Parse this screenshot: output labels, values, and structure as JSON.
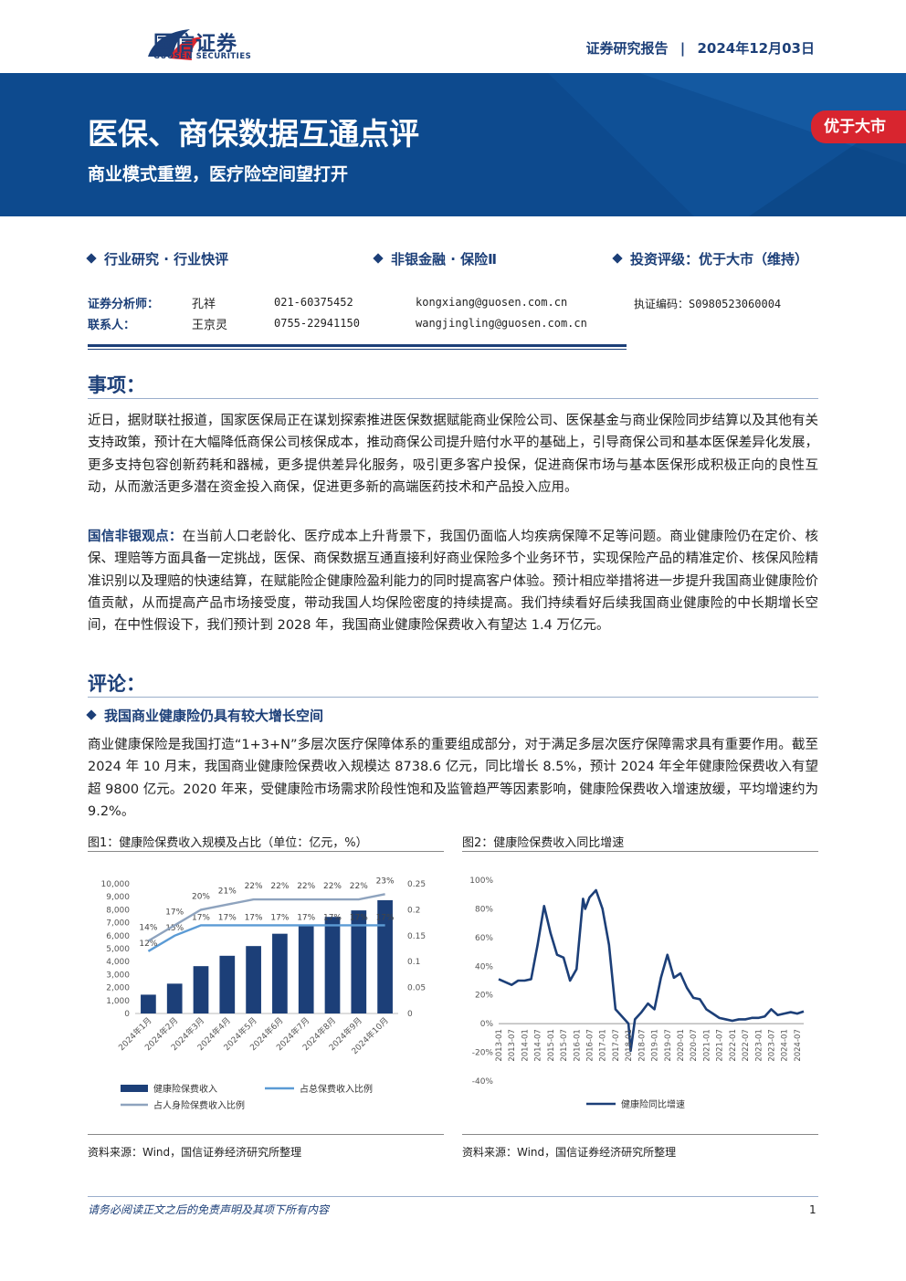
{
  "header": {
    "logo_cn": "国信证券",
    "logo_en": "GUOSEN SECURITIES",
    "report_type": "证券研究报告",
    "date": "2024年12月03日",
    "title": "医保、商保数据互通点评",
    "subtitle": "商业模式重塑，医疗险空间望打开",
    "rating_badge": "优于大市"
  },
  "info": {
    "category": "行业研究 · 行业快评",
    "industry": "非银金融 · 保险Ⅱ",
    "rating": "投资评级：优于大市（维持）"
  },
  "analysts": [
    {
      "role": "证券分析师：",
      "name": "孔祥",
      "phone": "021-60375452",
      "email": "kongxiang@guosen.com.cn",
      "cert": "执证编码：S0980523060004"
    },
    {
      "role": "联系人：",
      "name": "王京灵",
      "phone": "0755-22941150",
      "email": "wangjingling@guosen.com.cn",
      "cert": ""
    }
  ],
  "sections": {
    "event_heading": "事项：",
    "event_text": "近日，据财联社报道，国家医保局正在谋划探索推进医保数据赋能商业保险公司、医保基金与商业保险同步结算以及其他有关支持政策，预计在大幅降低商保公司核保成本，推动商保公司提升赔付水平的基础上，引导商保公司和基本医保差异化发展，更多支持包容创新药耗和器械，更多提供差异化服务，吸引更多客户投保，促进商保市场与基本医保形成积极正向的良性互动，从而激活更多潜在资金投入商保，促进更多新的高端医药技术和产品投入应用。",
    "view_label": "国信非银观点：",
    "view_text": "在当前人口老龄化、医疗成本上升背景下，我国仍面临人均疾病保障不足等问题。商业健康险仍在定价、核保、理赔等方面具备一定挑战，医保、商保数据互通直接利好商业保险多个业务环节，实现保险产品的精准定价、核保风险精准识别以及理赔的快速结算，在赋能险企健康险盈利能力的同时提高客户体验。预计相应举措将进一步提升我国商业健康险价值贡献，从而提高产品市场接受度，带动我国人均保险密度的持续提高。我们持续看好后续我国商业健康险的中长期增长空间，在中性假设下，我们预计到 2028 年，我国商业健康险保费收入有望达 1.4 万亿元。",
    "comment_heading": "评论：",
    "sub_heading": "我国商业健康险仍具有较大增长空间",
    "comment_text": "商业健康保险是我国打造“1+3+N”多层次医疗保障体系的重要组成部分，对于满足多层次医疗保障需求具有重要作用。截至 2024 年 10 月末，我国商业健康险保费收入规模达 8738.6 亿元，同比增长 8.5%，预计 2024 年全年健康险保费收入有望超 9800 亿元。2020 年来，受健康险市场需求阶段性饱和及监管趋严等因素影响，健康险保费收入增速放缓，平均增速约为 9.2%。"
  },
  "figures": {
    "fig1_title": "图1：健康险保费收入规模及占比（单位：亿元，%）",
    "fig2_title": "图2：健康险保费收入同比增速",
    "fig1_source": "资料来源：Wind，国信证券经济研究所整理",
    "fig2_source": "资料来源：Wind，国信证券经济研究所整理"
  },
  "chart_data": [
    {
      "type": "bar",
      "categories": [
        "2024年1月",
        "2024年2月",
        "2024年3月",
        "2024年4月",
        "2024年5月",
        "2024年6月",
        "2024年7月",
        "2024年8月",
        "2024年9月",
        "2024年10月"
      ],
      "series": [
        {
          "name": "健康险保费收入",
          "type": "bar",
          "axis": "left",
          "values": [
            1450,
            2300,
            3650,
            4450,
            5200,
            6150,
            6800,
            7450,
            7950,
            8738.6
          ]
        },
        {
          "name": "占总保费收入比例",
          "type": "line",
          "axis": "right",
          "values": [
            0.12,
            0.15,
            0.17,
            0.17,
            0.17,
            0.17,
            0.17,
            0.17,
            0.17,
            0.17
          ],
          "labels": [
            "12%",
            "15%",
            "17%",
            "17%",
            "17%",
            "17%",
            "17%",
            "17%",
            "17%",
            "17%"
          ]
        },
        {
          "name": "占人身险保费收入比例",
          "type": "line",
          "axis": "right",
          "values": [
            0.14,
            0.17,
            0.2,
            0.21,
            0.22,
            0.22,
            0.22,
            0.22,
            0.22,
            0.23
          ],
          "labels": [
            "14%",
            "17%",
            "20%",
            "21%",
            "22%",
            "22%",
            "22%",
            "22%",
            "22%",
            "23%"
          ]
        }
      ],
      "yticks_left": [
        "0",
        "1,000",
        "2,000",
        "3,000",
        "4,000",
        "5,000",
        "6,000",
        "7,000",
        "8,000",
        "9,000",
        "10,000"
      ],
      "yticks_right": [
        "0",
        "0.05",
        "0.1",
        "0.15",
        "0.2",
        "0.25"
      ],
      "ylim_left": [
        0,
        10000
      ],
      "ylim_right": [
        0,
        0.25
      ],
      "colors": {
        "bar": "#1c3f78",
        "line1": "#5b9bd5",
        "line2": "#8ea3be"
      },
      "legend_placement": "bottom"
    },
    {
      "type": "line",
      "series": [
        {
          "name": "健康险同比增速",
          "points": [
            [
              "2013-01",
              0.31
            ],
            [
              "2013-04",
              0.29
            ],
            [
              "2013-07",
              0.27
            ],
            [
              "2013-10",
              0.3
            ],
            [
              "2014-01",
              0.3
            ],
            [
              "2014-04",
              0.31
            ],
            [
              "2014-07",
              0.55
            ],
            [
              "2014-10",
              0.82
            ],
            [
              "2015-01",
              0.63
            ],
            [
              "2015-04",
              0.48
            ],
            [
              "2015-07",
              0.46
            ],
            [
              "2015-10",
              0.3
            ],
            [
              "2016-01",
              0.38
            ],
            [
              "2016-04",
              0.87
            ],
            [
              "2016-05",
              0.8
            ],
            [
              "2016-07",
              0.88
            ],
            [
              "2016-10",
              0.93
            ],
            [
              "2017-01",
              0.8
            ],
            [
              "2017-04",
              0.55
            ],
            [
              "2017-07",
              0.1
            ],
            [
              "2017-10",
              0.05
            ],
            [
              "2018-01",
              0.0
            ],
            [
              "2018-02",
              -0.19
            ],
            [
              "2018-04",
              0.03
            ],
            [
              "2018-07",
              0.08
            ],
            [
              "2018-10",
              0.14
            ],
            [
              "2019-01",
              0.1
            ],
            [
              "2019-04",
              0.32
            ],
            [
              "2019-07",
              0.48
            ],
            [
              "2019-10",
              0.32
            ],
            [
              "2020-01",
              0.35
            ],
            [
              "2020-04",
              0.25
            ],
            [
              "2020-07",
              0.18
            ],
            [
              "2020-10",
              0.17
            ],
            [
              "2021-01",
              0.1
            ],
            [
              "2021-04",
              0.07
            ],
            [
              "2021-07",
              0.04
            ],
            [
              "2021-10",
              0.03
            ],
            [
              "2022-01",
              0.02
            ],
            [
              "2022-04",
              0.03
            ],
            [
              "2022-07",
              0.03
            ],
            [
              "2022-10",
              0.04
            ],
            [
              "2023-01",
              0.04
            ],
            [
              "2023-04",
              0.05
            ],
            [
              "2023-07",
              0.1
            ],
            [
              "2023-10",
              0.06
            ],
            [
              "2024-01",
              0.07
            ],
            [
              "2024-04",
              0.08
            ],
            [
              "2024-07",
              0.07
            ],
            [
              "2024-10",
              0.085
            ]
          ]
        }
      ],
      "xticks": [
        "2013-01",
        "2013-07",
        "2014-01",
        "2014-07",
        "2015-01",
        "2015-07",
        "2016-01",
        "2016-07",
        "2017-01",
        "2017-07",
        "2018-01",
        "2018-07",
        "2019-01",
        "2019-07",
        "2020-01",
        "2020-07",
        "2021-01",
        "2021-07",
        "2022-01",
        "2022-07",
        "2023-01",
        "2023-07",
        "2024-01",
        "2024-07"
      ],
      "yticks": [
        "-40%",
        "-20%",
        "0%",
        "20%",
        "40%",
        "60%",
        "80%",
        "100%"
      ],
      "ylim": [
        -0.4,
        1.0
      ],
      "colors": {
        "line": "#1c3f78"
      },
      "legend_placement": "bottom"
    }
  ],
  "footer": {
    "disclaimer": "请务必阅读正文之后的免责声明及其项下所有内容",
    "page": "1"
  }
}
